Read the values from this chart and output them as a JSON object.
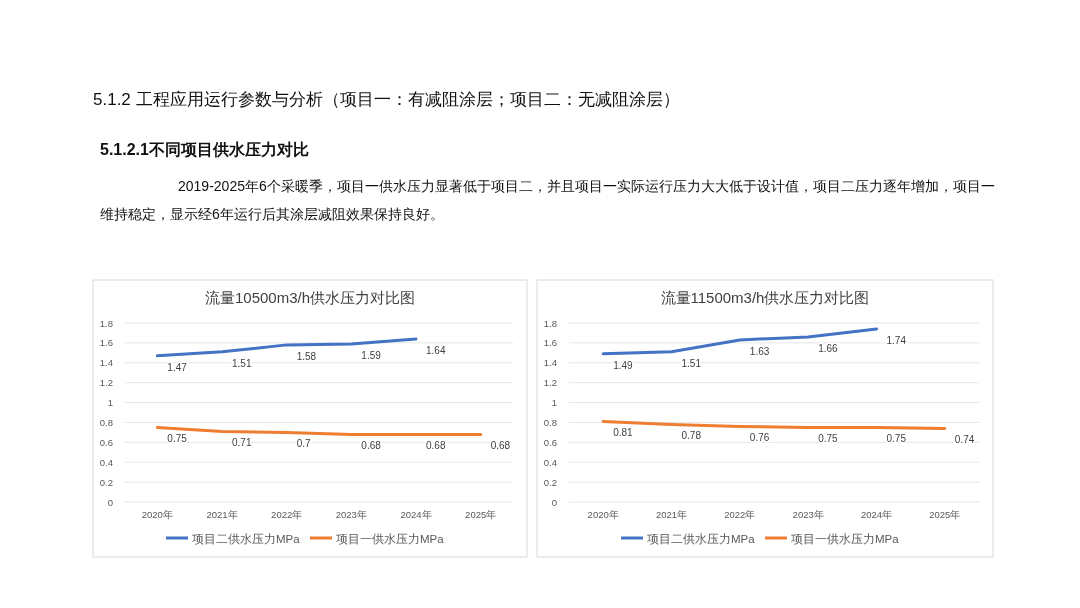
{
  "chart_data": [
    {
      "type": "line",
      "title": "流量10500m3/h供水压力对比图",
      "annotations": [
        "5.1.2 工程应用运行参数与分析（项目一：有减阻涂层；项目二：无减阻涂层）",
        "5.1.2.1不同项目供水压力对比",
        "2019-2025年6个采暖季，项目一供水压力显著低于项目二，并且项目一实际运行压力大大低于设计值，项目二压力逐年增加，项目一维持稳定，显示经6年运行后其涂层减阻效果保持良好。"
      ],
      "categories": [
        "2020年",
        "2021年",
        "2022年",
        "2023年",
        "2024年",
        "2025年"
      ],
      "series": [
        {
          "name": "项目二供水压力MPa",
          "color": "#4472c4",
          "values": [
            1.47,
            1.51,
            1.58,
            1.59,
            1.64,
            null
          ]
        },
        {
          "name": "项目一供水压力MPa",
          "color": "#ed7d31",
          "values": [
            0.75,
            0.71,
            0.7,
            0.68,
            0.68,
            0.68
          ]
        }
      ],
      "ylim": [
        0,
        1.8
      ],
      "yticks": [
        0,
        0.2,
        0.4,
        0.6,
        0.8,
        1,
        1.2,
        1.4,
        1.6,
        1.8
      ],
      "grid": "y",
      "legend": "bottom",
      "data_labels": true,
      "marker": "none",
      "line_style": "solid"
    },
    {
      "type": "line",
      "title": "流量11500m3/h供水压力对比图",
      "categories": [
        "2020年",
        "2021年",
        "2022年",
        "2023年",
        "2024年",
        "2025年"
      ],
      "series": [
        {
          "name": "项目二供水压力MPa",
          "color": "#4472c4",
          "values": [
            1.49,
            1.51,
            1.63,
            1.66,
            1.74,
            null
          ]
        },
        {
          "name": "项目一供水压力MPa",
          "color": "#ed7d31",
          "values": [
            0.81,
            0.78,
            0.76,
            0.75,
            0.75,
            0.74
          ]
        }
      ],
      "ylim": [
        0,
        1.8
      ],
      "yticks": [
        0,
        0.2,
        0.4,
        0.6,
        0.8,
        1,
        1.2,
        1.4,
        1.6,
        1.8
      ],
      "grid": "y",
      "legend": "bottom",
      "data_labels": true,
      "marker": "none",
      "line_style": "solid"
    }
  ]
}
